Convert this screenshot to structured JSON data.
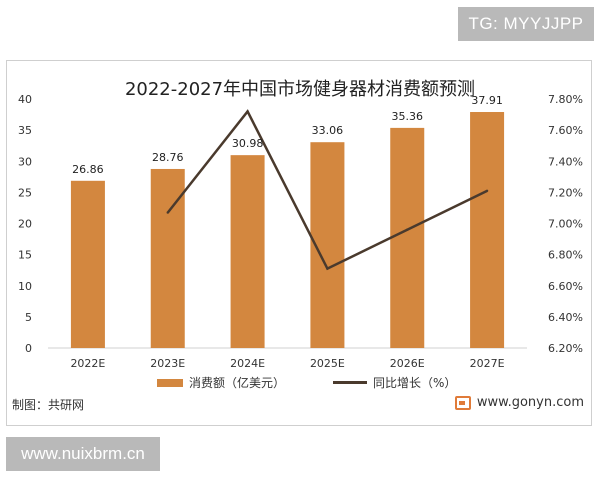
{
  "watermark_top": "TG: MYYJJPP",
  "watermark_bottom": "www.nuixbrm.cn",
  "source_label": "制图：共研网",
  "site_label": "www.gonyn.com",
  "colors": {
    "bar": "#d3873f",
    "line": "#4a3a2d",
    "grid": "#e6e6e6"
  },
  "chart_data": {
    "type": "bar",
    "title": "2022-2027年中国市场健身器材消费额预测",
    "categories": [
      "2022E",
      "2023E",
      "2024E",
      "2025E",
      "2026E",
      "2027E"
    ],
    "series": [
      {
        "name": "消费额（亿美元）",
        "type": "bar",
        "axis": "left",
        "values": [
          26.86,
          28.76,
          30.98,
          33.06,
          35.36,
          37.91
        ]
      },
      {
        "name": "同比增长（%）",
        "type": "line",
        "axis": "right",
        "values": [
          null,
          7.07,
          7.72,
          6.71,
          6.96,
          7.21
        ]
      }
    ],
    "ylim_left": [
      0,
      40
    ],
    "yticks_left": [
      0,
      5,
      10,
      15,
      20,
      25,
      30,
      35,
      40
    ],
    "ylim_right": [
      6.2,
      7.8
    ],
    "yticks_right": [
      "6.20%",
      "6.40%",
      "6.60%",
      "6.80%",
      "7.00%",
      "7.20%",
      "7.40%",
      "7.60%",
      "7.80%"
    ],
    "grid": false,
    "legend": "bottom"
  }
}
